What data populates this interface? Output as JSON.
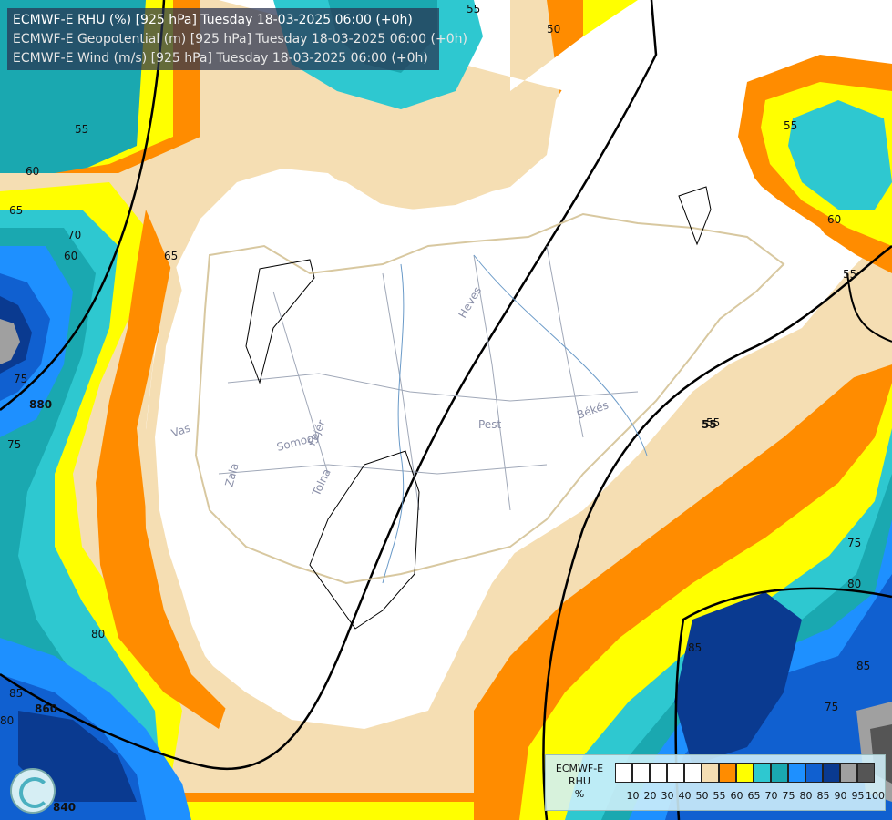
{
  "titles": [
    {
      "text": "ECMWF-E RHU (%) [925 hPa] Tuesday 18-03-2025 06:00 (+0h)",
      "color": "#ffffff"
    },
    {
      "text": "ECMWF-E Geopotential (m) [925 hPa] Tuesday 18-03-2025 06:00 (+0h)",
      "color": "#e6e6e6"
    },
    {
      "text": "ECMWF-E Wind (m/s) [925 hPa] Tuesday 18-03-2025 06:00 (+0h)",
      "color": "#e6e6e6"
    }
  ],
  "legend": {
    "model": "ECMWF-E",
    "variable": "RHU",
    "unit": "%",
    "ticks": [
      "10",
      "20",
      "30",
      "40",
      "50",
      "55",
      "60",
      "65",
      "70",
      "75",
      "80",
      "85",
      "90",
      "95",
      "100"
    ],
    "colors": [
      "#ffffff",
      "#ffffff",
      "#ffffff",
      "#ffffff",
      "#ffffff",
      "#f5deb3",
      "#ff8c00",
      "#ffff00",
      "#2ec8d0",
      "#1aa8b0",
      "#1e90ff",
      "#1060d0",
      "#0a3a90",
      "#a0a0a0",
      "#555555"
    ]
  },
  "rh_levels": [
    {
      "value": 55,
      "color": "#f5deb3"
    },
    {
      "value": 60,
      "color": "#ff8c00"
    },
    {
      "value": 65,
      "color": "#ffff00"
    },
    {
      "value": 70,
      "color": "#2ec8d0"
    },
    {
      "value": 75,
      "color": "#1aa8b0"
    },
    {
      "value": 80,
      "color": "#1e90ff"
    },
    {
      "value": 85,
      "color": "#1060d0"
    },
    {
      "value": 90,
      "color": "#0a3a90"
    },
    {
      "value": 95,
      "color": "#a0a0a0"
    }
  ],
  "rh_contour_labels": [
    "55",
    "50",
    "55",
    "60",
    "65",
    "70",
    "65",
    "75",
    "55",
    "60",
    "55",
    "75",
    "80",
    "85",
    "80",
    "85",
    "55",
    "60",
    "75",
    "80",
    "85",
    "75"
  ],
  "geopotential_labels": [
    "880",
    "860",
    "840",
    "55"
  ],
  "places": [
    "Heves",
    "Pest",
    "Békés",
    "Vas",
    "Somogy",
    "Fejér",
    "Tolna",
    "Zala"
  ],
  "wind_barb_colors": {
    "strong": "#cc1020",
    "moderate": "#e85010",
    "light": "#f0a0c0",
    "calm": "#ffffff"
  }
}
